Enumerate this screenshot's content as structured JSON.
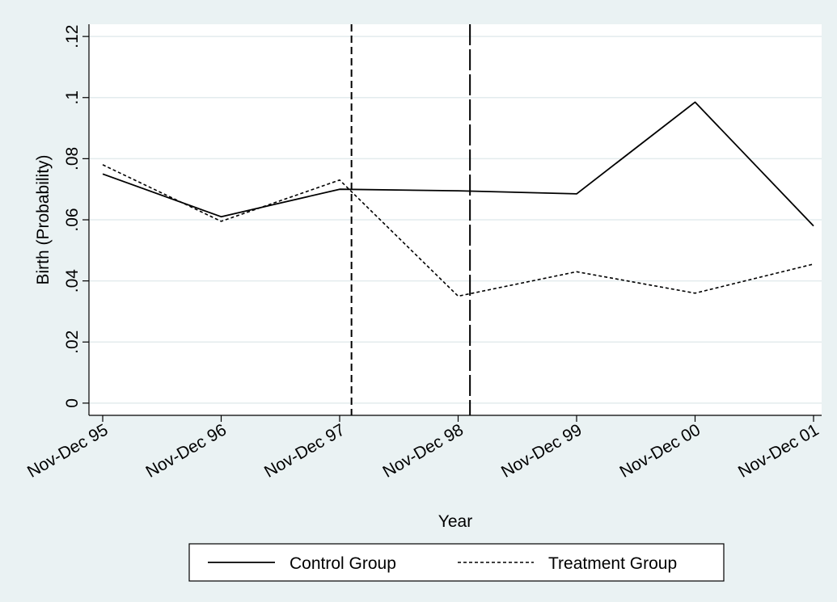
{
  "colors": {
    "background": "#eaf2f3",
    "plot_background": "#ffffff",
    "gridline": "#e3ebed",
    "line": "#000000"
  },
  "chart_data": {
    "type": "line",
    "title": "",
    "xlabel": "Year",
    "ylabel": "Birth (Probability)",
    "categories": [
      "Nov-Dec 95",
      "Nov-Dec 96",
      "Nov-Dec 97",
      "Nov-Dec 98",
      "Nov-Dec 99",
      "Nov-Dec 00",
      "Nov-Dec 01"
    ],
    "ylim": [
      -0.004,
      0.124
    ],
    "yticks": [
      0,
      0.02,
      0.04,
      0.06,
      0.08,
      0.1,
      0.12
    ],
    "ytick_labels": [
      "0",
      ".02",
      ".04",
      ".06",
      ".08",
      ".1",
      ".12"
    ],
    "grid": true,
    "legend_position": "bottom",
    "series": [
      {
        "name": "Control Group",
        "style": "solid",
        "values": [
          0.075,
          0.061,
          0.07,
          0.0695,
          0.0685,
          0.0985,
          0.058
        ]
      },
      {
        "name": "Treatment Group",
        "style": "dashed",
        "values": [
          0.078,
          0.0595,
          0.073,
          0.035,
          0.043,
          0.036,
          0.0455
        ]
      }
    ],
    "reference_lines": [
      {
        "x": 2.1,
        "style": "short-dash"
      },
      {
        "x": 3.1,
        "style": "long-dash"
      }
    ]
  }
}
